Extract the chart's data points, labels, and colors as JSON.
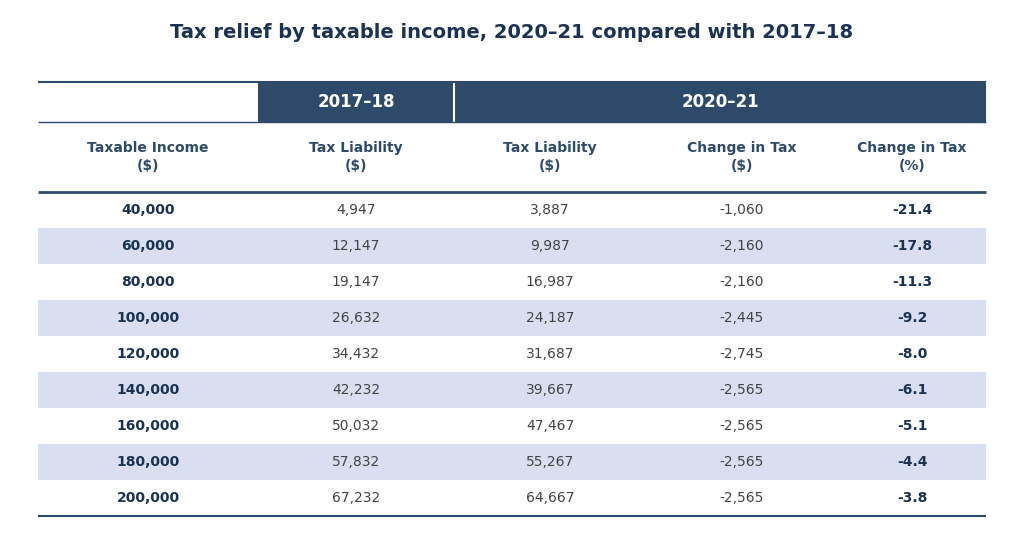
{
  "title": "Tax relief by taxable income, 2020–21 compared with 2017–18",
  "header_group1": "2017–18",
  "header_group2": "2020–21",
  "col_headers": [
    "Taxable Income\n($)",
    "Tax Liability\n($)",
    "Tax Liability\n($)",
    "Change in Tax\n($)",
    "Change in Tax\n(%)"
  ],
  "rows": [
    [
      "40,000",
      "4,947",
      "3,887",
      "-1,060",
      "-21.4"
    ],
    [
      "60,000",
      "12,147",
      "9,987",
      "-2,160",
      "-17.8"
    ],
    [
      "80,000",
      "19,147",
      "16,987",
      "-2,160",
      "-11.3"
    ],
    [
      "100,000",
      "26,632",
      "24,187",
      "-2,445",
      "-9.2"
    ],
    [
      "120,000",
      "34,432",
      "31,687",
      "-2,745",
      "-8.0"
    ],
    [
      "140,000",
      "42,232",
      "39,667",
      "-2,565",
      "-6.1"
    ],
    [
      "160,000",
      "50,032",
      "47,467",
      "-2,565",
      "-5.1"
    ],
    [
      "180,000",
      "57,832",
      "55,267",
      "-2,565",
      "-4.4"
    ],
    [
      "200,000",
      "67,232",
      "64,667",
      "-2,565",
      "-3.8"
    ]
  ],
  "header_bg_color": "#2d4a6b",
  "header_text_color": "#FFFFFF",
  "subheader_text_color": "#2d4a6b",
  "row_odd_bg": "#FFFFFF",
  "row_even_bg": "#d9dff0",
  "title_color": "#1a3355",
  "line_color": "#2d4a6b",
  "data_text_color": "#444444",
  "bold_col0_color": "#1a3355",
  "bold_last_col_color": "#1a3355",
  "fig_width": 10.24,
  "fig_height": 5.53,
  "dpi": 100
}
